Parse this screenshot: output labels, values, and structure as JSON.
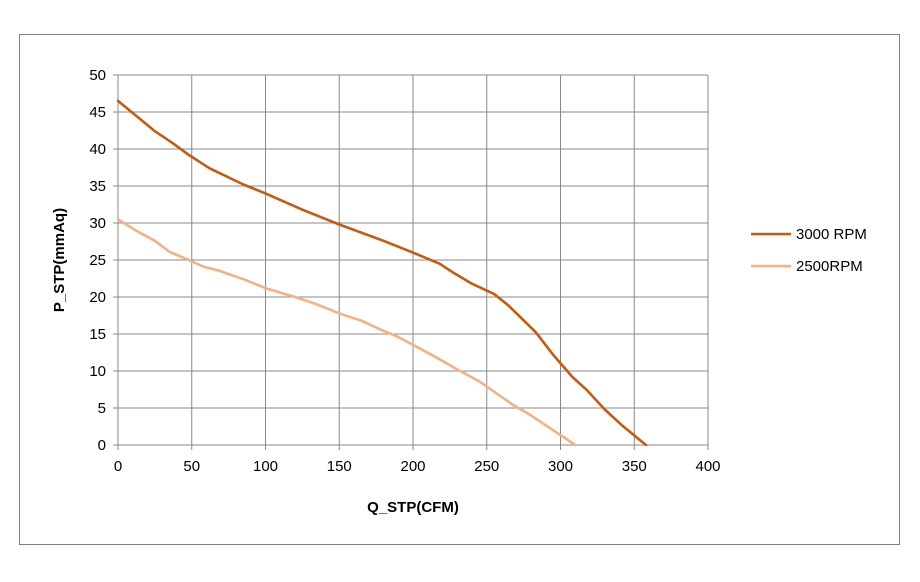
{
  "chart_data": {
    "type": "line",
    "title": "",
    "xlabel": "Q_STP(CFM)",
    "ylabel": "P_STP(mmAq)",
    "xlim": [
      0,
      400
    ],
    "ylim": [
      0,
      50
    ],
    "xticks": [
      0,
      50,
      100,
      150,
      200,
      250,
      300,
      350,
      400
    ],
    "yticks": [
      0,
      5,
      10,
      15,
      20,
      25,
      30,
      35,
      40,
      45,
      50
    ],
    "grid": true,
    "legend_position": "right",
    "series": [
      {
        "name": "3000 RPM",
        "color": "#c55a11",
        "points": [
          [
            0,
            46.5
          ],
          [
            14,
            44.2
          ],
          [
            25,
            42.4
          ],
          [
            37,
            40.8
          ],
          [
            48,
            39.2
          ],
          [
            62,
            37.4
          ],
          [
            85,
            35.2
          ],
          [
            100,
            34.0
          ],
          [
            125,
            31.8
          ],
          [
            150,
            29.8
          ],
          [
            180,
            27.6
          ],
          [
            200,
            26.0
          ],
          [
            218,
            24.5
          ],
          [
            228,
            23.2
          ],
          [
            240,
            21.8
          ],
          [
            255,
            20.4
          ],
          [
            265,
            18.8
          ],
          [
            283,
            15.3
          ],
          [
            295,
            12.2
          ],
          [
            308,
            9.2
          ],
          [
            318,
            7.4
          ],
          [
            330,
            4.8
          ],
          [
            342,
            2.6
          ],
          [
            358,
            0
          ]
        ]
      },
      {
        "name": "2500RPM",
        "color": "#f4b183",
        "points": [
          [
            0,
            30.5
          ],
          [
            12,
            29.0
          ],
          [
            25,
            27.6
          ],
          [
            35,
            26.1
          ],
          [
            48,
            25.0
          ],
          [
            58,
            24.1
          ],
          [
            68,
            23.6
          ],
          [
            85,
            22.4
          ],
          [
            100,
            21.2
          ],
          [
            120,
            20.0
          ],
          [
            135,
            19.0
          ],
          [
            150,
            17.8
          ],
          [
            165,
            16.8
          ],
          [
            178,
            15.6
          ],
          [
            190,
            14.6
          ],
          [
            205,
            13.0
          ],
          [
            218,
            11.6
          ],
          [
            230,
            10.2
          ],
          [
            245,
            8.6
          ],
          [
            255,
            7.2
          ],
          [
            268,
            5.4
          ],
          [
            280,
            4.0
          ],
          [
            295,
            2.0
          ],
          [
            310,
            0
          ]
        ]
      }
    ]
  }
}
